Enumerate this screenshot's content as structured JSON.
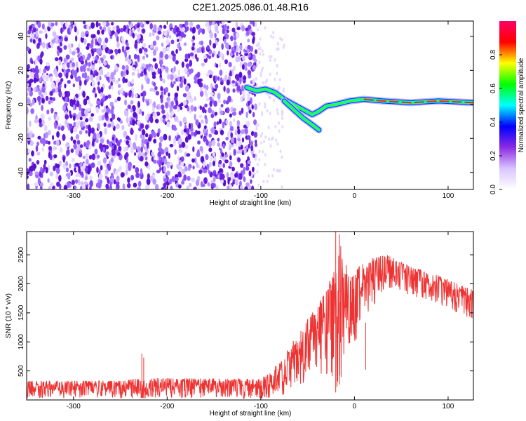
{
  "title": "C2E1.2025.086.01.48.R16",
  "chart_data": [
    {
      "type": "heatmap",
      "xlabel": "Height of straight line (km)",
      "ylabel": "Frequency (Hz)",
      "xlim": [
        -350,
        127
      ],
      "ylim": [
        -50,
        49
      ],
      "xticks": [
        -300,
        -200,
        -100,
        0,
        100
      ],
      "yticks": [
        -40,
        -20,
        0,
        20,
        40
      ],
      "noise_region_x": [
        -350,
        -105
      ],
      "sparse_noise_region_x": [
        -105,
        -75
      ],
      "signal_trace": {
        "name": "",
        "points": [
          {
            "x": -115,
            "y": 10
          },
          {
            "x": -105,
            "y": 8
          },
          {
            "x": -95,
            "y": 9
          },
          {
            "x": -85,
            "y": 7
          },
          {
            "x": -75,
            "y": 3
          },
          {
            "x": -65,
            "y": 0
          },
          {
            "x": -55,
            "y": -3
          },
          {
            "x": -45,
            "y": -6
          },
          {
            "x": -38,
            "y": -4
          },
          {
            "x": -30,
            "y": -1
          },
          {
            "x": -20,
            "y": 0
          },
          {
            "x": -5,
            "y": 2
          },
          {
            "x": 10,
            "y": 3
          },
          {
            "x": 30,
            "y": 2
          },
          {
            "x": 60,
            "y": 1
          },
          {
            "x": 90,
            "y": 2
          },
          {
            "x": 127,
            "y": 1
          }
        ],
        "lower_branch": [
          {
            "x": -75,
            "y": 2
          },
          {
            "x": -65,
            "y": -3
          },
          {
            "x": -55,
            "y": -8
          },
          {
            "x": -45,
            "y": -12
          },
          {
            "x": -38,
            "y": -15
          }
        ]
      },
      "colorbar": {
        "label": "Normalized spectral amplitude",
        "range": [
          0,
          1
        ],
        "ticks": [
          "0.0",
          "0.2",
          "0.4",
          "0.6",
          "0.8"
        ],
        "tick_values": [
          0,
          0.2,
          0.4,
          0.6,
          0.8
        ],
        "colors": [
          "#ffffff",
          "#d9c4ff",
          "#8a2be2",
          "#0000ff",
          "#00ffff",
          "#00ff00",
          "#ffff00",
          "#ff0000",
          "#ff0066"
        ]
      }
    },
    {
      "type": "line",
      "xlabel": "Height of straight line (km)",
      "ylabel": "SNR (10 * v/v)",
      "xlim": [
        -350,
        127
      ],
      "ylim": [
        0,
        2900
      ],
      "xticks": [
        -300,
        -200,
        -100,
        0,
        100
      ],
      "yticks": [
        500,
        1000,
        1500,
        2000,
        2500
      ],
      "series": [
        {
          "name": "",
          "color": "#ee3333",
          "envelope": [
            {
              "x": -350,
              "lo": 30,
              "hi": 330
            },
            {
              "x": -250,
              "lo": 30,
              "hi": 330
            },
            {
              "x": -230,
              "lo": 30,
              "hi": 380
            },
            {
              "x": -100,
              "lo": 30,
              "hi": 360
            },
            {
              "x": -90,
              "lo": 40,
              "hi": 500
            },
            {
              "x": -80,
              "lo": 60,
              "hi": 650
            },
            {
              "x": -70,
              "lo": 100,
              "hi": 900
            },
            {
              "x": -60,
              "lo": 200,
              "hi": 1150
            },
            {
              "x": -50,
              "lo": 300,
              "hi": 1400
            },
            {
              "x": -40,
              "lo": 400,
              "hi": 1600
            },
            {
              "x": -30,
              "lo": 300,
              "hi": 1900
            },
            {
              "x": -22,
              "lo": 60,
              "hi": 2300
            },
            {
              "x": -15,
              "lo": 300,
              "hi": 2700
            },
            {
              "x": -5,
              "lo": 900,
              "hi": 2100
            },
            {
              "x": 5,
              "lo": 1100,
              "hi": 2300
            },
            {
              "x": 20,
              "lo": 1600,
              "hi": 2450
            },
            {
              "x": 35,
              "lo": 1950,
              "hi": 2500
            },
            {
              "x": 60,
              "lo": 1800,
              "hi": 2300
            },
            {
              "x": 90,
              "lo": 1650,
              "hi": 2150
            },
            {
              "x": 110,
              "lo": 1500,
              "hi": 2000
            },
            {
              "x": 127,
              "lo": 1380,
              "hi": 1900
            }
          ],
          "spikes": [
            {
              "x": -227,
              "y": 800
            },
            {
              "x": -225,
              "y": 730
            },
            {
              "x": -20,
              "y": 2900
            },
            {
              "x": -16,
              "y": 2850
            },
            {
              "x": 12,
              "y": 520
            }
          ]
        }
      ]
    }
  ]
}
